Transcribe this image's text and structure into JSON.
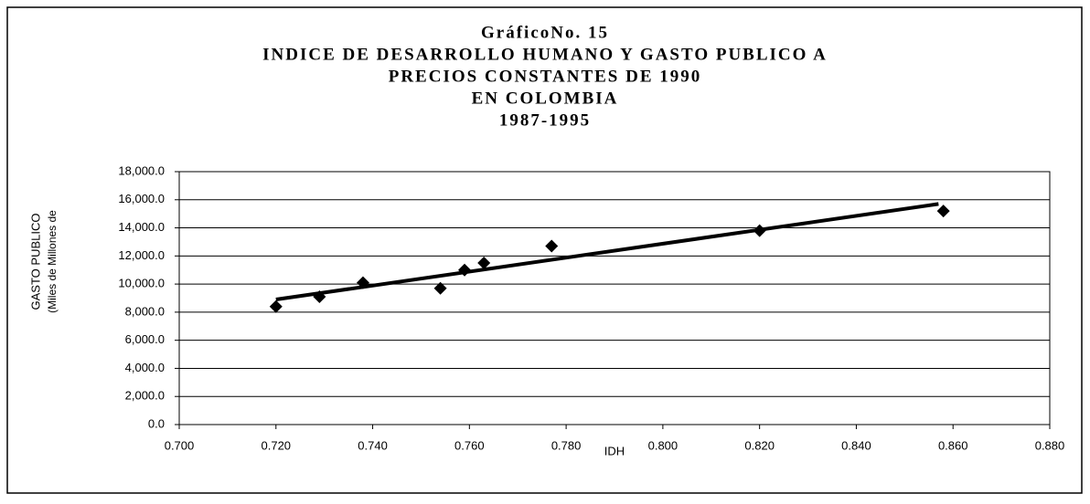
{
  "chart_data": {
    "type": "scatter",
    "title": [
      "GráficoNo. 15",
      "INDICE DE DESARROLLO HUMANO Y GASTO PUBLICO A",
      "PRECIOS CONSTANTES DE 1990",
      "EN COLOMBIA",
      "1987-1995"
    ],
    "y_label": [
      "GASTO PUBLICO",
      "(Miles de Millones de"
    ],
    "x_label": "IDH",
    "x": [
      0.72,
      0.729,
      0.738,
      0.754,
      0.759,
      0.763,
      0.777,
      0.82,
      0.858
    ],
    "values": [
      8400,
      9100,
      10100,
      9700,
      11000,
      11500,
      12700,
      13800,
      15200
    ],
    "color": "#000000",
    "trendline": {
      "x": [
        0.72,
        0.857
      ],
      "values": [
        8900,
        15700
      ]
    },
    "xlim": [
      0.7,
      0.88
    ],
    "xticks": [
      {
        "value": 0.7,
        "label": "0.700"
      },
      {
        "value": 0.72,
        "label": "0.720"
      },
      {
        "value": 0.74,
        "label": "0.740"
      },
      {
        "value": 0.76,
        "label": "0.760"
      },
      {
        "value": 0.78,
        "label": "0.780"
      },
      {
        "value": 0.8,
        "label": "0.800"
      },
      {
        "value": 0.82,
        "label": "0.820"
      },
      {
        "value": 0.84,
        "label": "0.840"
      },
      {
        "value": 0.86,
        "label": "0.860"
      },
      {
        "value": 0.88,
        "label": "0.880"
      }
    ],
    "ylim": [
      0,
      18000
    ],
    "yticks": [
      {
        "value": 0,
        "label": "0.0"
      },
      {
        "value": 2000,
        "label": "2,000.0"
      },
      {
        "value": 4000,
        "label": "4,000.0"
      },
      {
        "value": 6000,
        "label": "6,000.0"
      },
      {
        "value": 8000,
        "label": "8,000.0"
      },
      {
        "value": 10000,
        "label": "10,000.0"
      },
      {
        "value": 12000,
        "label": "12,000.0"
      },
      {
        "value": 14000,
        "label": "14,000.0"
      },
      {
        "value": 16000,
        "label": "16,000.0"
      },
      {
        "value": 18000,
        "label": "18,000.0"
      }
    ],
    "grid": true
  }
}
